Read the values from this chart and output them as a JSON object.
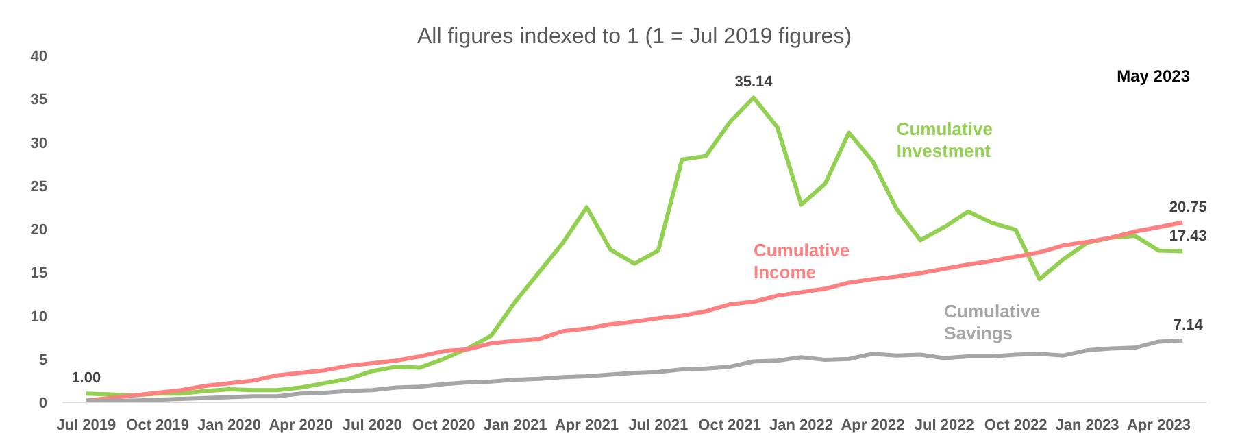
{
  "chart_data": {
    "type": "line",
    "title": "All figures indexed to 1 (1 = Jul 2019 figures)",
    "x": [
      "2019-07",
      "2019-08",
      "2019-09",
      "2019-10",
      "2019-11",
      "2019-12",
      "2020-01",
      "2020-02",
      "2020-03",
      "2020-04",
      "2020-05",
      "2020-06",
      "2020-07",
      "2020-08",
      "2020-09",
      "2020-10",
      "2020-11",
      "2020-12",
      "2021-01",
      "2021-02",
      "2021-03",
      "2021-04",
      "2021-05",
      "2021-06",
      "2021-07",
      "2021-08",
      "2021-09",
      "2021-10",
      "2021-11",
      "2021-12",
      "2022-01",
      "2022-02",
      "2022-03",
      "2022-04",
      "2022-05",
      "2022-06",
      "2022-07",
      "2022-08",
      "2022-09",
      "2022-10",
      "2022-11",
      "2022-12",
      "2023-01",
      "2023-02",
      "2023-03",
      "2023-04",
      "2023-05"
    ],
    "series": [
      {
        "name": "Cumulative Investment",
        "color": "#92d050",
        "values": [
          1.0,
          0.9,
          0.8,
          1.0,
          1.0,
          1.3,
          1.5,
          1.4,
          1.4,
          1.7,
          2.2,
          2.7,
          3.6,
          4.1,
          4.0,
          5.0,
          6.2,
          7.7,
          11.6,
          15.0,
          18.4,
          22.5,
          17.6,
          16.0,
          17.5,
          28.0,
          28.4,
          32.3,
          35.14,
          31.7,
          22.8,
          25.2,
          31.1,
          27.8,
          22.3,
          18.7,
          20.2,
          22.0,
          20.7,
          19.9,
          14.2,
          16.5,
          18.4,
          19.0,
          19.2,
          17.5,
          17.43
        ],
        "value_labels": [
          "1.00",
          null,
          null,
          null,
          null,
          null,
          null,
          null,
          null,
          null,
          null,
          null,
          null,
          null,
          null,
          null,
          null,
          null,
          null,
          null,
          null,
          null,
          null,
          null,
          null,
          null,
          null,
          null,
          "35.14",
          null,
          null,
          null,
          null,
          null,
          null,
          null,
          null,
          null,
          null,
          null,
          null,
          null,
          null,
          null,
          null,
          null,
          "17.43"
        ]
      },
      {
        "name": "Cumulative Income",
        "color": "#ff8080",
        "values": [
          0.2,
          0.5,
          0.8,
          1.1,
          1.4,
          1.9,
          2.2,
          2.5,
          3.1,
          3.4,
          3.7,
          4.2,
          4.5,
          4.8,
          5.3,
          5.9,
          6.1,
          6.8,
          7.1,
          7.3,
          8.2,
          8.5,
          9.0,
          9.3,
          9.7,
          10.0,
          10.5,
          11.3,
          11.6,
          12.3,
          12.7,
          13.1,
          13.8,
          14.2,
          14.5,
          14.9,
          15.4,
          15.9,
          16.3,
          16.8,
          17.3,
          18.1,
          18.5,
          19.0,
          19.7,
          20.2,
          20.75
        ],
        "value_labels": [
          null,
          null,
          null,
          null,
          null,
          null,
          null,
          null,
          null,
          null,
          null,
          null,
          null,
          null,
          null,
          null,
          null,
          null,
          null,
          null,
          null,
          null,
          null,
          null,
          null,
          null,
          null,
          null,
          null,
          null,
          null,
          null,
          null,
          null,
          null,
          null,
          null,
          null,
          null,
          null,
          null,
          null,
          null,
          null,
          null,
          null,
          "20.75"
        ]
      },
      {
        "name": "Cumulative Savings",
        "color": "#a6a6a6",
        "values": [
          0.2,
          0.2,
          0.2,
          0.3,
          0.4,
          0.5,
          0.6,
          0.7,
          0.7,
          1.0,
          1.1,
          1.3,
          1.4,
          1.7,
          1.8,
          2.1,
          2.3,
          2.4,
          2.6,
          2.7,
          2.9,
          3.0,
          3.2,
          3.4,
          3.5,
          3.8,
          3.9,
          4.1,
          4.7,
          4.8,
          5.2,
          4.9,
          5.0,
          5.6,
          5.4,
          5.5,
          5.1,
          5.3,
          5.3,
          5.5,
          5.6,
          5.4,
          6.0,
          6.2,
          6.3,
          7.0,
          7.14
        ],
        "value_labels": [
          null,
          null,
          null,
          null,
          null,
          null,
          null,
          null,
          null,
          null,
          null,
          null,
          null,
          null,
          null,
          null,
          null,
          null,
          null,
          null,
          null,
          null,
          null,
          null,
          null,
          null,
          null,
          null,
          null,
          null,
          null,
          null,
          null,
          null,
          null,
          null,
          null,
          null,
          null,
          null,
          null,
          null,
          null,
          null,
          null,
          null,
          "7.14"
        ]
      }
    ],
    "annotations": [
      "May 2023"
    ],
    "xlim": [
      "2019-06",
      "2023-06"
    ],
    "xticks": [
      {
        "value": "2019-07",
        "label": "Jul 2019"
      },
      {
        "value": "2019-10",
        "label": "Oct 2019"
      },
      {
        "value": "2020-01",
        "label": "Jan 2020"
      },
      {
        "value": "2020-04",
        "label": "Apr 2020"
      },
      {
        "value": "2020-07",
        "label": "Jul 2020"
      },
      {
        "value": "2020-10",
        "label": "Oct 2020"
      },
      {
        "value": "2021-01",
        "label": "Jan 2021"
      },
      {
        "value": "2021-04",
        "label": "Apr 2021"
      },
      {
        "value": "2021-07",
        "label": "Jul 2021"
      },
      {
        "value": "2021-10",
        "label": "Oct 2021"
      },
      {
        "value": "2022-01",
        "label": "Jan 2022"
      },
      {
        "value": "2022-04",
        "label": "Apr 2022"
      },
      {
        "value": "2022-07",
        "label": "Jul 2022"
      },
      {
        "value": "2022-10",
        "label": "Oct 2022"
      },
      {
        "value": "2023-01",
        "label": "Jan 2023"
      },
      {
        "value": "2023-04",
        "label": "Apr 2023"
      }
    ],
    "ylim": [
      0,
      40
    ],
    "yticks": [
      0,
      5,
      10,
      15,
      20,
      25,
      30,
      35,
      40
    ],
    "grid": false,
    "marker": "none",
    "line_style": "solid"
  }
}
